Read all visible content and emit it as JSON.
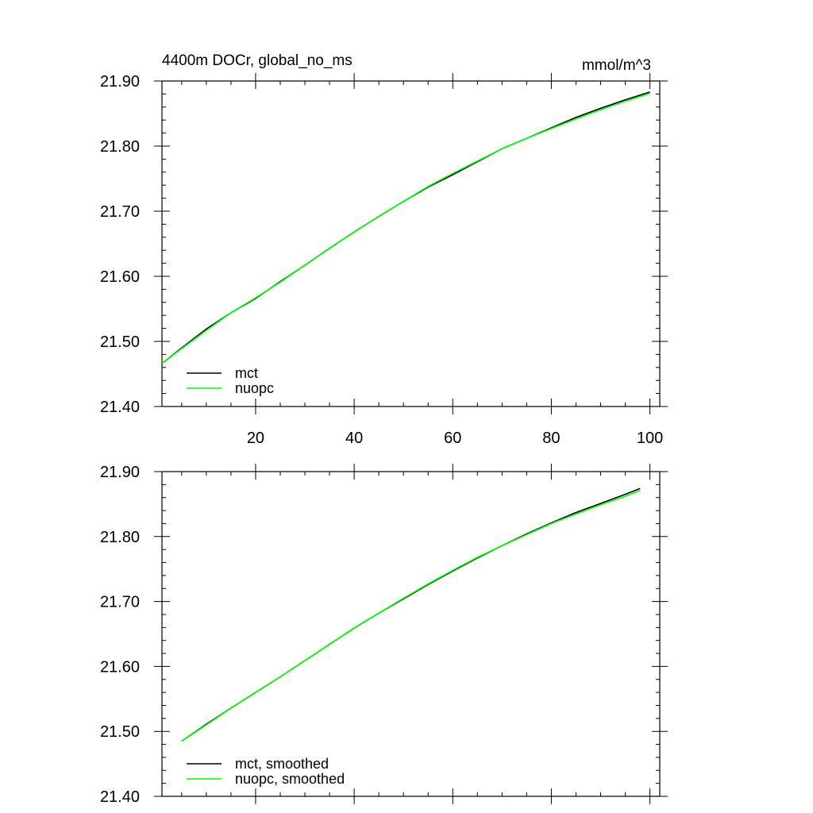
{
  "colors": {
    "background": "#ffffff",
    "axes": "#000000",
    "mct": "#000000",
    "nuopc": "#00ff00"
  },
  "chart_data": [
    {
      "type": "line",
      "title": "4400m DOCr, global_no_ms",
      "units": "mmol/m^3",
      "xlim": [
        1,
        102
      ],
      "ylim": [
        21.4,
        21.9
      ],
      "xticks": [
        20,
        40,
        60,
        80,
        100
      ],
      "xtick_labels": [
        "20",
        "40",
        "60",
        "80",
        "100"
      ],
      "yticks": [
        21.4,
        21.5,
        21.6,
        21.7,
        21.8,
        21.9
      ],
      "ytick_labels": [
        "21.40",
        "21.50",
        "21.60",
        "21.70",
        "21.80",
        "21.90"
      ],
      "grid": false,
      "legend_position": "bottom-left",
      "series": [
        {
          "name": "mct",
          "color": "#000000",
          "x": [
            1,
            5,
            10,
            15,
            20,
            25,
            30,
            35,
            40,
            45,
            50,
            55,
            60,
            65,
            70,
            75,
            80,
            85,
            90,
            95,
            100
          ],
          "y": [
            21.466,
            21.49,
            21.519,
            21.544,
            21.566,
            21.592,
            21.617,
            21.643,
            21.668,
            21.692,
            21.715,
            21.737,
            21.756,
            21.776,
            21.796,
            21.812,
            21.828,
            21.844,
            21.858,
            21.871,
            21.883
          ]
        },
        {
          "name": "nuopc",
          "color": "#00ff00",
          "x": [
            1,
            5,
            10,
            15,
            20,
            25,
            30,
            35,
            40,
            45,
            50,
            55,
            60,
            65,
            70,
            75,
            80,
            85,
            90,
            95,
            100
          ],
          "y": [
            21.466,
            21.489,
            21.517,
            21.544,
            21.567,
            21.591,
            21.617,
            21.643,
            21.668,
            21.692,
            21.715,
            21.738,
            21.758,
            21.777,
            21.796,
            21.812,
            21.827,
            21.842,
            21.856,
            21.869,
            21.881
          ]
        }
      ]
    },
    {
      "type": "line",
      "xlim": [
        1,
        102
      ],
      "ylim": [
        21.4,
        21.9
      ],
      "xticks": [
        20,
        40,
        60,
        80,
        100
      ],
      "yticks": [
        21.4,
        21.5,
        21.6,
        21.7,
        21.8,
        21.9
      ],
      "ytick_labels": [
        "21.40",
        "21.50",
        "21.60",
        "21.70",
        "21.80",
        "21.90"
      ],
      "grid": false,
      "legend_position": "bottom-left",
      "series": [
        {
          "name": "mct, smoothed",
          "color": "#000000",
          "x": [
            5,
            10,
            15,
            20,
            25,
            30,
            35,
            40,
            45,
            50,
            55,
            60,
            65,
            70,
            75,
            80,
            85,
            90,
            95,
            98
          ],
          "y": [
            21.485,
            21.511,
            21.536,
            21.56,
            21.584,
            21.609,
            21.634,
            21.659,
            21.682,
            21.704,
            21.726,
            21.747,
            21.767,
            21.786,
            21.804,
            21.821,
            21.837,
            21.851,
            21.865,
            21.874
          ]
        },
        {
          "name": "nuopc, smoothed",
          "color": "#00ff00",
          "x": [
            5,
            10,
            15,
            20,
            25,
            30,
            35,
            40,
            45,
            50,
            55,
            60,
            65,
            70,
            75,
            80,
            85,
            90,
            95,
            98
          ],
          "y": [
            21.485,
            21.51,
            21.536,
            21.56,
            21.584,
            21.609,
            21.634,
            21.659,
            21.682,
            21.705,
            21.727,
            21.748,
            21.768,
            21.786,
            21.803,
            21.82,
            21.835,
            21.849,
            21.862,
            21.871
          ]
        }
      ]
    }
  ]
}
